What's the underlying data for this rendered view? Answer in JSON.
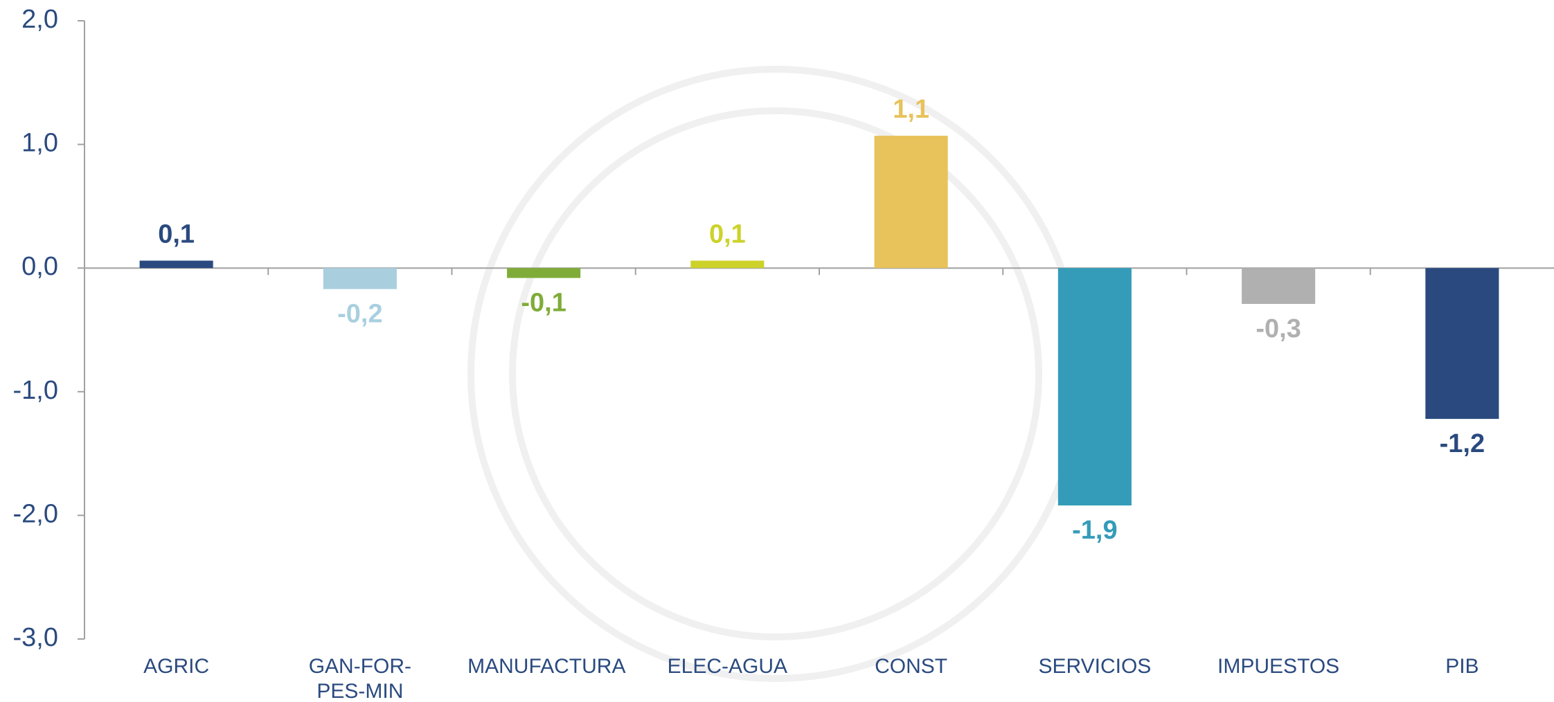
{
  "chart_data": {
    "type": "bar",
    "categories": [
      "AGRIC",
      "GAN-FOR-PES-MIN",
      "MANUFACTURA",
      "ELEC-AGUA",
      "CONST",
      "SERVICIOS",
      "IMPUESTOS",
      "PIB"
    ],
    "values": [
      0.06,
      -0.17,
      -0.08,
      0.06,
      1.07,
      -1.92,
      -0.29,
      -1.22
    ],
    "value_labels": [
      "0,1",
      "-0,2",
      "-0,1",
      "0,1",
      "1,1",
      "-1,9",
      "-0,3",
      "-1,2"
    ],
    "colors": [
      "#2a4a7f",
      "#a9cfdf",
      "#7fac38",
      "#cdd22a",
      "#e8c25a",
      "#349cb9",
      "#b0b0b0",
      "#2a4a7f"
    ],
    "ylim": [
      -3,
      2
    ],
    "yticks": [
      {
        "value": -3,
        "label": "-3,0"
      },
      {
        "value": -2,
        "label": "-2,0"
      },
      {
        "value": -1,
        "label": "-1,0"
      },
      {
        "value": 0,
        "label": "0,0"
      },
      {
        "value": 1,
        "label": "1,0"
      },
      {
        "value": 2,
        "label": "2,0"
      }
    ],
    "grid": false
  }
}
